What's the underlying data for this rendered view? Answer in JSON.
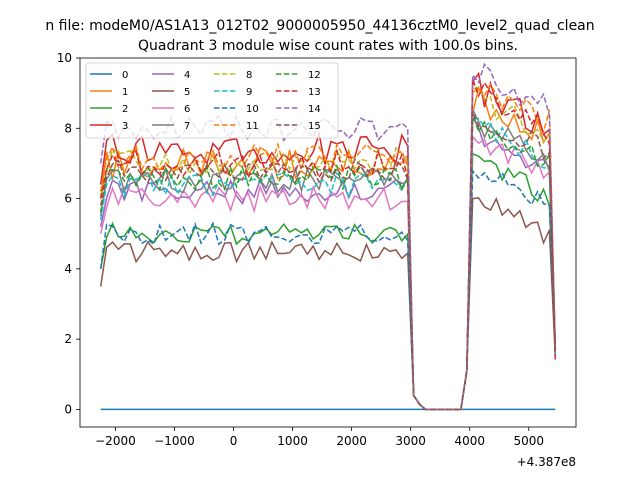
{
  "chart_data": {
    "type": "line",
    "suptitle": "n file: modeM0/AS1A13_012T02_9000005950_44136cztM0_level2_quad_clean",
    "title": "Quadrant 3 module wise count rates with 100.0s bins.",
    "xlabel": "",
    "ylabel": "",
    "x_offset_label": "+4.387e8",
    "xlim": [
      -2600,
      5800
    ],
    "ylim": [
      -0.5,
      10
    ],
    "xticks": [
      -2000,
      -1000,
      0,
      1000,
      2000,
      3000,
      4000,
      5000
    ],
    "xtick_labels": [
      "−2000",
      "−1000",
      "0",
      "1000",
      "2000",
      "3000",
      "4000",
      "5000"
    ],
    "yticks": [
      0,
      2,
      4,
      6,
      8,
      10
    ],
    "ytick_labels": [
      "0",
      "2",
      "4",
      "6",
      "8",
      "10"
    ],
    "legend_position": "upper-left",
    "x_start": -2250,
    "x_step": 100,
    "num_points": 78,
    "gap_start_index": 53,
    "gap_end_index": 62,
    "series": [
      {
        "name": "0",
        "color": "#1f77b4",
        "dash": "solid",
        "base": 0.0,
        "post": 0.0,
        "amp": 0.0,
        "seed": 1
      },
      {
        "name": "1",
        "color": "#ff7f0e",
        "dash": "solid",
        "base": 7.0,
        "post": 7.9,
        "amp": 0.45,
        "seed": 2
      },
      {
        "name": "2",
        "color": "#2ca02c",
        "dash": "solid",
        "base": 5.0,
        "post": 6.3,
        "amp": 0.3,
        "seed": 3
      },
      {
        "name": "3",
        "color": "#d62728",
        "dash": "solid",
        "base": 7.4,
        "post": 8.3,
        "amp": 0.45,
        "seed": 4
      },
      {
        "name": "4",
        "color": "#9467bd",
        "dash": "solid",
        "base": 6.2,
        "post": 7.1,
        "amp": 0.35,
        "seed": 5
      },
      {
        "name": "5",
        "color": "#8c564b",
        "dash": "solid",
        "base": 4.5,
        "post": 5.2,
        "amp": 0.3,
        "seed": 6
      },
      {
        "name": "6",
        "color": "#e377c2",
        "dash": "solid",
        "base": 6.0,
        "post": 6.9,
        "amp": 0.35,
        "seed": 7
      },
      {
        "name": "7",
        "color": "#7f7f7f",
        "dash": "solid",
        "base": 6.5,
        "post": 7.3,
        "amp": 0.35,
        "seed": 8
      },
      {
        "name": "8",
        "color": "#bcbd22",
        "dash": "dashed",
        "base": 7.1,
        "post": 8.0,
        "amp": 0.4,
        "seed": 9
      },
      {
        "name": "9",
        "color": "#17becf",
        "dash": "dashed",
        "base": 6.4,
        "post": 7.3,
        "amp": 0.35,
        "seed": 10
      },
      {
        "name": "10",
        "color": "#1f77b4",
        "dash": "dashed",
        "base": 5.0,
        "post": 6.0,
        "amp": 0.3,
        "seed": 11
      },
      {
        "name": "11",
        "color": "#ff7f0e",
        "dash": "dashed",
        "base": 7.2,
        "post": 8.4,
        "amp": 0.4,
        "seed": 12
      },
      {
        "name": "12",
        "color": "#2ca02c",
        "dash": "dashed",
        "base": 6.6,
        "post": 7.2,
        "amp": 0.35,
        "seed": 13
      },
      {
        "name": "13",
        "color": "#d62728",
        "dash": "dashed",
        "base": 7.0,
        "post": 8.2,
        "amp": 0.4,
        "seed": 14
      },
      {
        "name": "14",
        "color": "#9467bd",
        "dash": "dashed",
        "base": 8.0,
        "post": 8.8,
        "amp": 0.35,
        "seed": 15
      },
      {
        "name": "15",
        "color": "#8c564b",
        "dash": "dashed",
        "base": 6.8,
        "post": 7.6,
        "amp": 0.35,
        "seed": 16
      }
    ]
  }
}
